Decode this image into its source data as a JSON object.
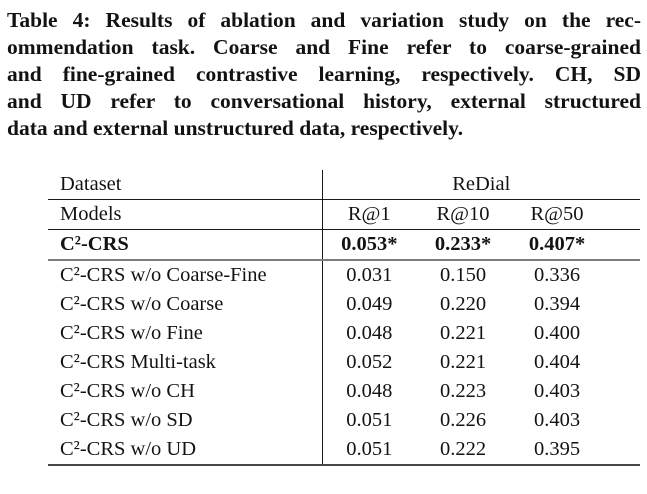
{
  "caption": {
    "lines": [
      "Table 4: Results of ablation and variation study on the rec-",
      "ommendation task. Coarse and Fine refer to coarse-grained",
      "and fine-grained contrastive learning, respectively. CH, SD",
      "and UD refer to conversational history, external structured",
      "data and external unstructured data, respectively."
    ]
  },
  "table": {
    "header": {
      "dataset_label": "Dataset",
      "dataset_name": "ReDial",
      "models_label": "Models",
      "metrics": [
        "R@1",
        "R@10",
        "R@50"
      ]
    },
    "rows": [
      {
        "model": "C²-CRS",
        "highlight": true,
        "values": [
          "0.053*",
          "0.233*",
          "0.407*"
        ]
      },
      {
        "model": "C²-CRS w/o Coarse-Fine",
        "values": [
          "0.031",
          "0.150",
          "0.336"
        ]
      },
      {
        "model": "C²-CRS w/o Coarse",
        "values": [
          "0.049",
          "0.220",
          "0.394"
        ]
      },
      {
        "model": "C²-CRS w/o Fine",
        "values": [
          "0.048",
          "0.221",
          "0.400"
        ]
      },
      {
        "model": "C²-CRS Multi-task",
        "values": [
          "0.052",
          "0.221",
          "0.404"
        ]
      },
      {
        "model": "C²-CRS w/o CH",
        "values": [
          "0.048",
          "0.223",
          "0.403"
        ]
      },
      {
        "model": "C²-CRS w/o SD",
        "values": [
          "0.051",
          "0.226",
          "0.403"
        ]
      },
      {
        "model": "C²-CRS w/o UD",
        "values": [
          "0.051",
          "0.222",
          "0.395"
        ]
      }
    ]
  }
}
